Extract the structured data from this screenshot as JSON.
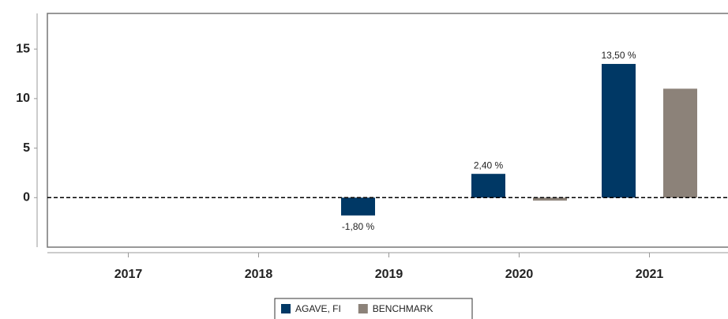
{
  "chart_data": {
    "type": "bar",
    "categories": [
      "2017",
      "2018",
      "2019",
      "2020",
      "2021"
    ],
    "series": [
      {
        "name": "AGAVE, FI",
        "color": "#003865",
        "values": [
          null,
          null,
          -1.8,
          2.4,
          13.5
        ],
        "value_labels": [
          null,
          null,
          "-1,80 %",
          "2,40 %",
          "13,50 %"
        ]
      },
      {
        "name": "BENCHMARK",
        "color": "#8c8279",
        "values": [
          null,
          null,
          null,
          -0.3,
          11.0
        ]
      }
    ],
    "ylim": [
      -5,
      18.6
    ],
    "yticks": [
      0,
      5,
      10,
      15
    ],
    "grid": false,
    "legend": "bottom"
  }
}
